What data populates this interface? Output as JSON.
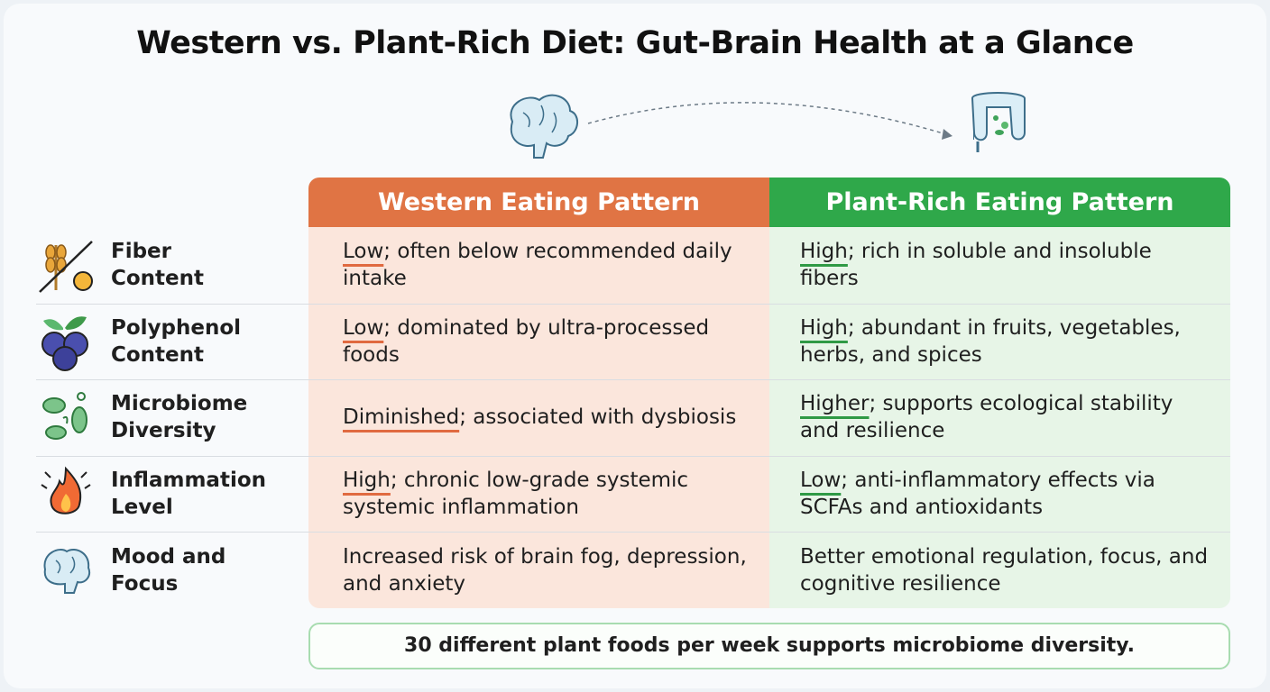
{
  "title": "Western vs. Plant-Rich Diet: Gut-Brain Health at a Glance",
  "table": {
    "headers": [
      "Western Eating Pattern",
      "Plant-Rich Eating Pattern"
    ],
    "rows": [
      {
        "label": [
          "Fiber",
          "Content"
        ],
        "western": {
          "keyword": "Low",
          "rest": "; often below recommended daily intake"
        },
        "plant": {
          "keyword": "High",
          "rest": "; rich in soluble and insoluble fibers"
        }
      },
      {
        "label": [
          "Polyphenol",
          "Content"
        ],
        "western": {
          "keyword": "Low",
          "rest": "; dominated by ultra-processed foods"
        },
        "plant": {
          "keyword": "High",
          "rest": "; abundant in fruits, vegetables, herbs, and spices"
        }
      },
      {
        "label": [
          "Microbiome",
          "Diversity"
        ],
        "western": {
          "keyword": "Diminished",
          "rest": "; associated with dysbiosis"
        },
        "plant": {
          "keyword": "Higher",
          "rest": "; supports ecological stability and resilience"
        }
      },
      {
        "label": [
          "Inflammation",
          "Level"
        ],
        "western": {
          "keyword": "High",
          "rest": "; chronic low-grade systemic systemic inflammation"
        },
        "plant": {
          "keyword": "Low",
          "rest": "; anti-inflammatory effects via SCFAs and antioxidants"
        }
      },
      {
        "label": [
          "Mood and",
          "Focus"
        ],
        "western": {
          "rest": "Increased risk of brain fog, depression, and anxiety"
        },
        "plant": {
          "rest": "Better emotional regulation, focus, and cognitive resilience"
        }
      }
    ]
  },
  "footer": "30 different plant foods per week supports microbiome diversity."
}
